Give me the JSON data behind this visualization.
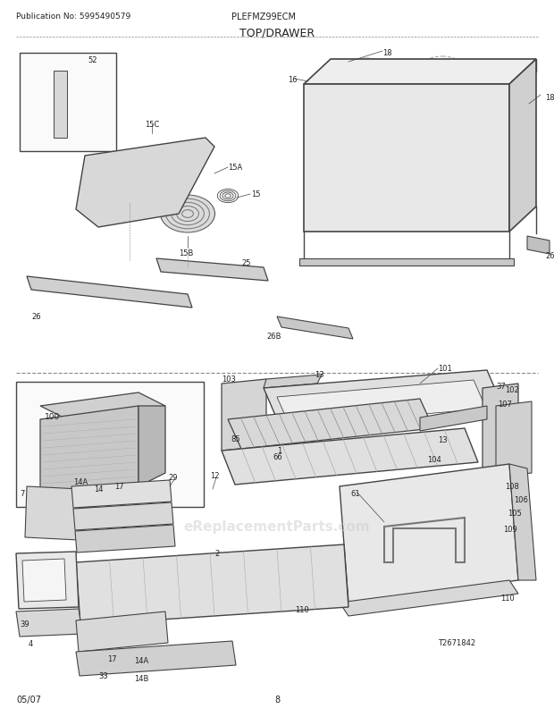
{
  "title": "TOP/DRAWER",
  "pub_no": "Publication No: 5995490579",
  "model": "PLEFMZ99ECM",
  "date": "05/07",
  "page": "8",
  "bg_color": "#ffffff",
  "lc": "#444444",
  "tc": "#222222",
  "watermark": "eReplacementParts.com",
  "fig_w": 6.2,
  "fig_h": 8.03,
  "dpi": 100
}
